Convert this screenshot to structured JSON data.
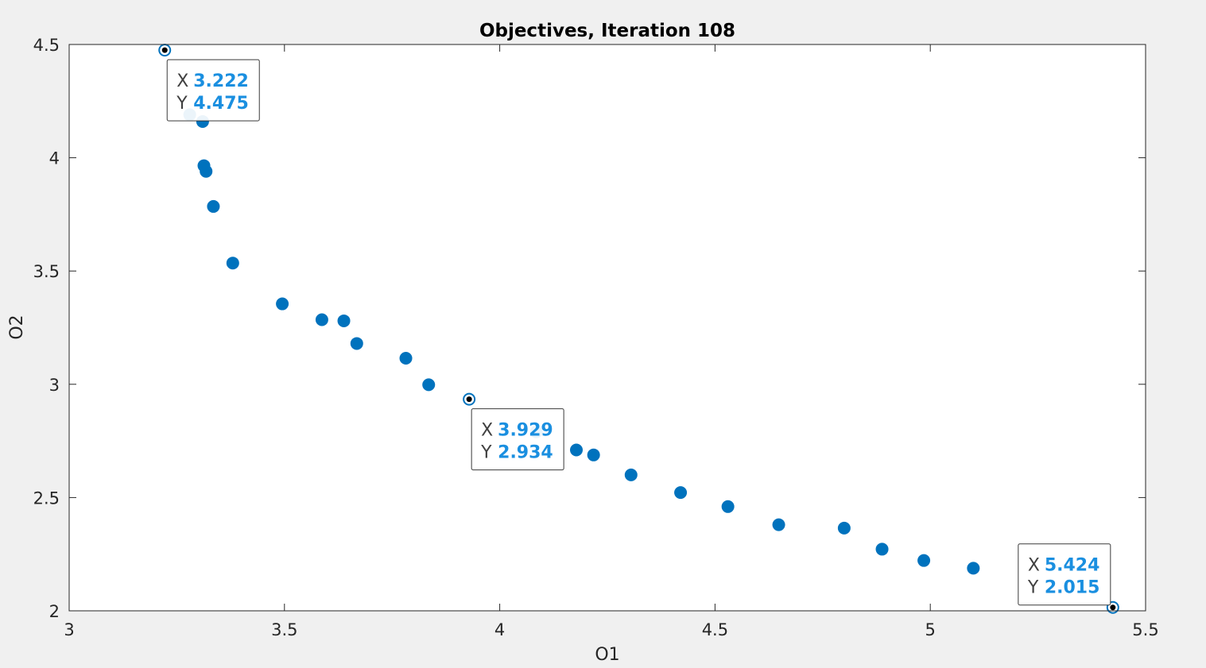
{
  "colors": {
    "background": "#f0f0f0",
    "axes_bg": "#ffffff",
    "axis": "#262626",
    "marker": "#0072bd",
    "datatip_value": "#1a8fe0"
  },
  "chart_data": {
    "type": "scatter",
    "title": "Objectives, Iteration 108",
    "xlabel": "O1",
    "ylabel": "O2",
    "xlim": [
      3,
      5.5
    ],
    "ylim": [
      2,
      4.5
    ],
    "xticks": [
      "3",
      "3.5",
      "4",
      "4.5",
      "5",
      "5.5"
    ],
    "yticks": [
      "2",
      "2.5",
      "3",
      "3.5",
      "4",
      "4.5"
    ],
    "grid": false,
    "points": [
      {
        "x": 3.222,
        "y": 4.475
      },
      {
        "x": 3.28,
        "y": 4.19
      },
      {
        "x": 3.31,
        "y": 4.16
      },
      {
        "x": 3.313,
        "y": 3.965
      },
      {
        "x": 3.318,
        "y": 3.94
      },
      {
        "x": 3.335,
        "y": 3.785
      },
      {
        "x": 3.38,
        "y": 3.535
      },
      {
        "x": 3.495,
        "y": 3.355
      },
      {
        "x": 3.587,
        "y": 3.285
      },
      {
        "x": 3.638,
        "y": 3.28
      },
      {
        "x": 3.668,
        "y": 3.18
      },
      {
        "x": 3.782,
        "y": 3.115
      },
      {
        "x": 3.835,
        "y": 2.998
      },
      {
        "x": 3.929,
        "y": 2.934
      },
      {
        "x": 4.085,
        "y": 2.79
      },
      {
        "x": 4.178,
        "y": 2.71
      },
      {
        "x": 4.218,
        "y": 2.688
      },
      {
        "x": 4.305,
        "y": 2.6
      },
      {
        "x": 4.42,
        "y": 2.522
      },
      {
        "x": 4.53,
        "y": 2.46
      },
      {
        "x": 4.648,
        "y": 2.38
      },
      {
        "x": 4.8,
        "y": 2.365
      },
      {
        "x": 4.888,
        "y": 2.272
      },
      {
        "x": 4.985,
        "y": 2.222
      },
      {
        "x": 5.1,
        "y": 2.188
      },
      {
        "x": 5.424,
        "y": 2.015
      }
    ],
    "datatips": [
      {
        "x_key": "X",
        "y_key": "Y",
        "x_text": "3.222",
        "y_text": "4.475",
        "x": 3.222,
        "y": 4.475
      },
      {
        "x_key": "X",
        "y_key": "Y",
        "x_text": "3.929",
        "y_text": "2.934",
        "x": 3.929,
        "y": 2.934
      },
      {
        "x_key": "X",
        "y_key": "Y",
        "x_text": "5.424",
        "y_text": "2.015",
        "x": 5.424,
        "y": 2.015
      }
    ]
  }
}
